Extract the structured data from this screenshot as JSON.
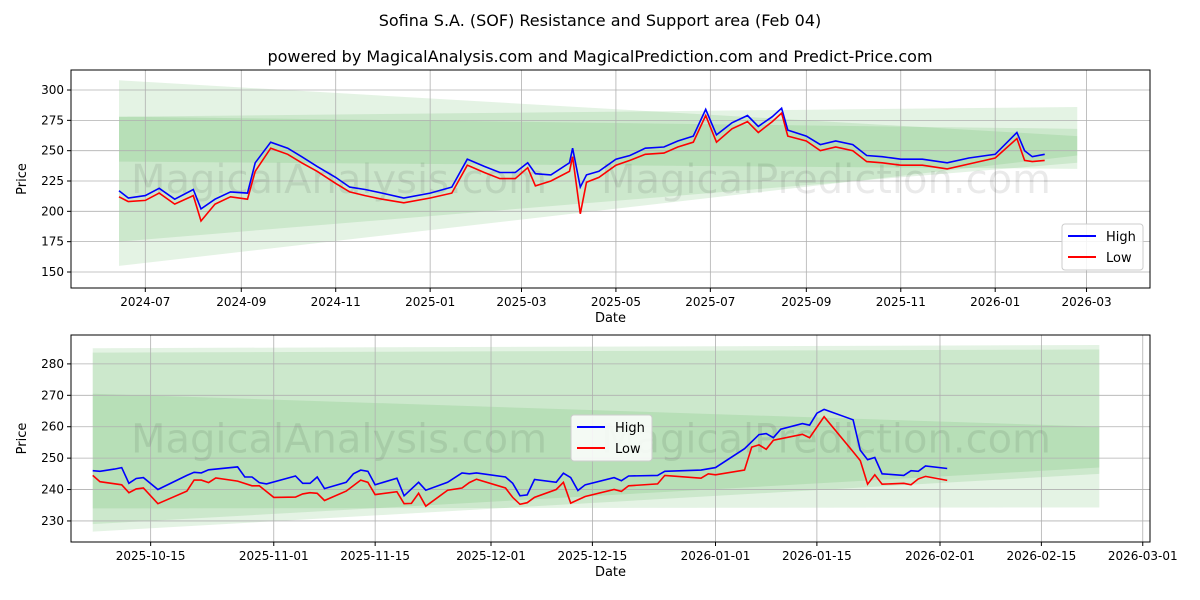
{
  "title": "Sofina S.A. (SOF) Resistance and Support area (Feb 04)",
  "subtitle": "powered by MagicalAnalysis.com and MagicalPrediction.com and Predict-Price.com",
  "colors": {
    "high": "#0000ff",
    "low": "#ff0000",
    "band": "#2ca02c"
  },
  "chart_data": [
    {
      "type": "line",
      "xlabel": "Date",
      "ylabel": "Price",
      "xlim": [
        "2024-05-14",
        "2026-04-11"
      ],
      "ylim": [
        136.8,
        316.5
      ],
      "xticks": [
        "2024-07",
        "2024-09",
        "2024-11",
        "2025-01",
        "2025-03",
        "2025-05",
        "2025-07",
        "2025-09",
        "2025-11",
        "2026-01",
        "2026-03"
      ],
      "yticks": [
        150,
        175,
        200,
        225,
        250,
        275,
        300
      ],
      "grid": true,
      "legend": {
        "position": "lower-right",
        "entries": [
          "High",
          "Low"
        ]
      },
      "watermark": [
        "MagicalAnalysis.com",
        "MagicalPrediction.com"
      ],
      "bands": [
        {
          "start": "2024-06-14",
          "end": "2026-02-23",
          "start_range": [
            241,
            278
          ],
          "end_range": [
            235,
            286
          ]
        },
        {
          "start": "2024-06-14",
          "end": "2026-02-23",
          "start_range": [
            155,
            308
          ],
          "end_range": [
            246,
            262
          ]
        },
        {
          "start": "2024-06-14",
          "end": "2026-02-23",
          "start_range": [
            175,
            278
          ],
          "end_range": [
            240,
            268
          ]
        }
      ],
      "x": [
        "2024-06-14",
        "2024-06-20",
        "2024-07-01",
        "2024-07-10",
        "2024-07-20",
        "2024-08-01",
        "2024-08-06",
        "2024-08-15",
        "2024-08-25",
        "2024-09-05",
        "2024-09-10",
        "2024-09-20",
        "2024-10-01",
        "2024-10-10",
        "2024-10-20",
        "2024-11-01",
        "2024-11-10",
        "2024-11-20",
        "2024-12-01",
        "2024-12-15",
        "2025-01-01",
        "2025-01-15",
        "2025-01-25",
        "2025-02-05",
        "2025-02-15",
        "2025-02-25",
        "2025-03-05",
        "2025-03-10",
        "2025-03-20",
        "2025-04-01",
        "2025-04-03",
        "2025-04-08",
        "2025-04-12",
        "2025-04-20",
        "2025-05-01",
        "2025-05-10",
        "2025-05-20",
        "2025-06-01",
        "2025-06-10",
        "2025-06-20",
        "2025-06-28",
        "2025-07-05",
        "2025-07-15",
        "2025-07-25",
        "2025-08-01",
        "2025-08-10",
        "2025-08-16",
        "2025-08-20",
        "2025-09-01",
        "2025-09-10",
        "2025-09-20",
        "2025-10-01",
        "2025-10-10",
        "2025-10-20",
        "2025-11-01",
        "2025-11-15",
        "2025-12-01",
        "2025-12-15",
        "2026-01-01",
        "2026-01-15",
        "2026-01-20",
        "2026-01-25",
        "2026-02-02"
      ],
      "series": [
        {
          "name": "High",
          "values": [
            217,
            211,
            213,
            219,
            210,
            218,
            202,
            210,
            216,
            215,
            240,
            257,
            252,
            245,
            237,
            228,
            220,
            218,
            215,
            211,
            215,
            220,
            243,
            237,
            232,
            232,
            240,
            231,
            230,
            240,
            252,
            220,
            230,
            233,
            243,
            246,
            252,
            253,
            258,
            262,
            284,
            263,
            273,
            279,
            270,
            278,
            285,
            267,
            262,
            255,
            258,
            255,
            246,
            245,
            243,
            243,
            240,
            244,
            247,
            265,
            250,
            245,
            247
          ]
        },
        {
          "name": "Low",
          "values": [
            212,
            208,
            209,
            215,
            206,
            213,
            192,
            206,
            212,
            210,
            233,
            252,
            247,
            240,
            233,
            223,
            216,
            213,
            210,
            207,
            211,
            215,
            238,
            232,
            227,
            227,
            236,
            221,
            225,
            233,
            245,
            198,
            224,
            228,
            238,
            242,
            247,
            248,
            253,
            257,
            279,
            257,
            268,
            274,
            265,
            274,
            281,
            262,
            258,
            250,
            253,
            250,
            241,
            240,
            238,
            238,
            235,
            239,
            244,
            260,
            242,
            241,
            242
          ]
        }
      ]
    },
    {
      "type": "line",
      "xlabel": "Date",
      "ylabel": "Price",
      "xlim": [
        "2025-10-04",
        "2026-03-02"
      ],
      "ylim": [
        223.3,
        289.2
      ],
      "xticks": [
        "2025-10-15",
        "2025-11-01",
        "2025-11-15",
        "2025-12-01",
        "2025-12-15",
        "2026-01-01",
        "2026-01-15",
        "2026-02-01",
        "2026-02-15",
        "2026-03-01"
      ],
      "yticks": [
        230,
        240,
        250,
        260,
        270,
        280
      ],
      "grid": true,
      "legend": {
        "position": "center",
        "entries": [
          "High",
          "Low"
        ]
      },
      "watermark": [
        "MagicalAnalysis.com",
        "MagicalPrediction.com"
      ],
      "bands": [
        {
          "start": "2025-10-07",
          "end": "2026-02-23",
          "start_range": [
            234,
            283.6
          ],
          "end_range": [
            234.3,
            284.6
          ]
        },
        {
          "start": "2025-10-07",
          "end": "2026-02-23",
          "start_range": [
            226.6,
            285
          ],
          "end_range": [
            245,
            286
          ]
        },
        {
          "start": "2025-10-07",
          "end": "2026-02-23",
          "start_range": [
            229,
            270.5
          ],
          "end_range": [
            247,
            260
          ]
        }
      ],
      "high": {
        "x": [
          "2025-10-07",
          "2025-10-08",
          "2025-10-10",
          "2025-10-11",
          "2025-10-12",
          "2025-10-13",
          "2025-10-14",
          "2025-10-16",
          "2025-10-20",
          "2025-10-21",
          "2025-10-22",
          "2025-10-23",
          "2025-10-27",
          "2025-10-28",
          "2025-10-29",
          "2025-10-30",
          "2025-10-31",
          "2025-11-04",
          "2025-11-05",
          "2025-11-06",
          "2025-11-07",
          "2025-11-08",
          "2025-11-11",
          "2025-11-12",
          "2025-11-13",
          "2025-11-14",
          "2025-11-15",
          "2025-11-18",
          "2025-11-19",
          "2025-11-21",
          "2025-11-22",
          "2025-11-25",
          "2025-11-27",
          "2025-11-28",
          "2025-11-29",
          "2025-12-03",
          "2025-12-04",
          "2025-12-05",
          "2025-12-06",
          "2025-12-07",
          "2025-12-10",
          "2025-12-11",
          "2025-12-12",
          "2025-12-13",
          "2025-12-14",
          "2025-12-18",
          "2025-12-19",
          "2025-12-20",
          "2025-12-24",
          "2025-12-25",
          "2025-12-30",
          "2026-01-01",
          "2026-01-05",
          "2026-01-07",
          "2026-01-08",
          "2026-01-09",
          "2026-01-10",
          "2026-01-13",
          "2026-01-14",
          "2026-01-15",
          "2026-01-16",
          "2026-01-20",
          "2026-01-21",
          "2026-01-22",
          "2026-01-23",
          "2026-01-24",
          "2026-01-27",
          "2026-01-28",
          "2026-01-29",
          "2026-01-30",
          "2026-02-02"
        ],
        "values": [
          246,
          245.8,
          246.5,
          247,
          242,
          243.5,
          243.8,
          240,
          244.5,
          245.5,
          245.3,
          246.3,
          247.2,
          244,
          244,
          242.2,
          241.8,
          244.3,
          242,
          242,
          244,
          240.3,
          242.3,
          245,
          246.2,
          245.8,
          241.5,
          243.6,
          238,
          242.3,
          239.8,
          242.3,
          245.3,
          245,
          245.3,
          244,
          242,
          238,
          238.3,
          243.2,
          242.3,
          245.2,
          243.8,
          239.7,
          241.5,
          243.8,
          242.8,
          244.3,
          244.5,
          245.8,
          246.2,
          247,
          253,
          257.5,
          257.8,
          256.5,
          259.2,
          261,
          260.5,
          264.3,
          265.5,
          262.2,
          252.5,
          249.5,
          250.2,
          245,
          244.5,
          246,
          245.8,
          247.5,
          246.7
        ]
      },
      "low": {
        "x": [
          "2025-10-07",
          "2025-10-08",
          "2025-10-11",
          "2025-10-12",
          "2025-10-13",
          "2025-10-14",
          "2025-10-16",
          "2025-10-20",
          "2025-10-21",
          "2025-10-22",
          "2025-10-23",
          "2025-10-24",
          "2025-10-27",
          "2025-10-29",
          "2025-10-30",
          "2025-11-01",
          "2025-11-04",
          "2025-11-05",
          "2025-11-06",
          "2025-11-07",
          "2025-11-08",
          "2025-11-11",
          "2025-11-13",
          "2025-11-14",
          "2025-11-15",
          "2025-11-18",
          "2025-11-19",
          "2025-11-20",
          "2025-11-21",
          "2025-11-22",
          "2025-11-25",
          "2025-11-27",
          "2025-11-28",
          "2025-11-29",
          "2025-12-03",
          "2025-12-04",
          "2025-12-05",
          "2025-12-06",
          "2025-12-07",
          "2025-12-10",
          "2025-12-11",
          "2025-12-12",
          "2025-12-14",
          "2025-12-18",
          "2025-12-19",
          "2025-12-20",
          "2025-12-24",
          "2025-12-25",
          "2025-12-30",
          "2025-12-31",
          "2026-01-01",
          "2026-01-05",
          "2026-01-06",
          "2026-01-07",
          "2026-01-08",
          "2026-01-09",
          "2026-01-13",
          "2026-01-14",
          "2026-01-16",
          "2026-01-20",
          "2026-01-21",
          "2026-01-22",
          "2026-01-23",
          "2026-01-24",
          "2026-01-27",
          "2026-01-28",
          "2026-01-29",
          "2026-01-30",
          "2026-02-02"
        ],
        "values": [
          244.5,
          242.5,
          241.5,
          239,
          240.2,
          240.5,
          235.5,
          239.5,
          243,
          243,
          242.2,
          243.7,
          242.7,
          241.2,
          241.2,
          237.5,
          237.6,
          238.6,
          239,
          238.8,
          236.5,
          239.5,
          243,
          242.3,
          238.4,
          239.3,
          235.5,
          235.6,
          238.8,
          234.7,
          239.8,
          240.5,
          242.2,
          243.3,
          240.5,
          237.5,
          235.3,
          235.8,
          237.5,
          240,
          242.3,
          235.7,
          237.8,
          240,
          239.4,
          241.2,
          241.8,
          244.5,
          243.6,
          245,
          244.7,
          246.2,
          253.5,
          254.2,
          252.8,
          255.7,
          257.6,
          256.5,
          263.2,
          252,
          249.2,
          241.7,
          244.7,
          241.7,
          242,
          241.5,
          243.4,
          244.2,
          242.9
        ]
      }
    }
  ]
}
